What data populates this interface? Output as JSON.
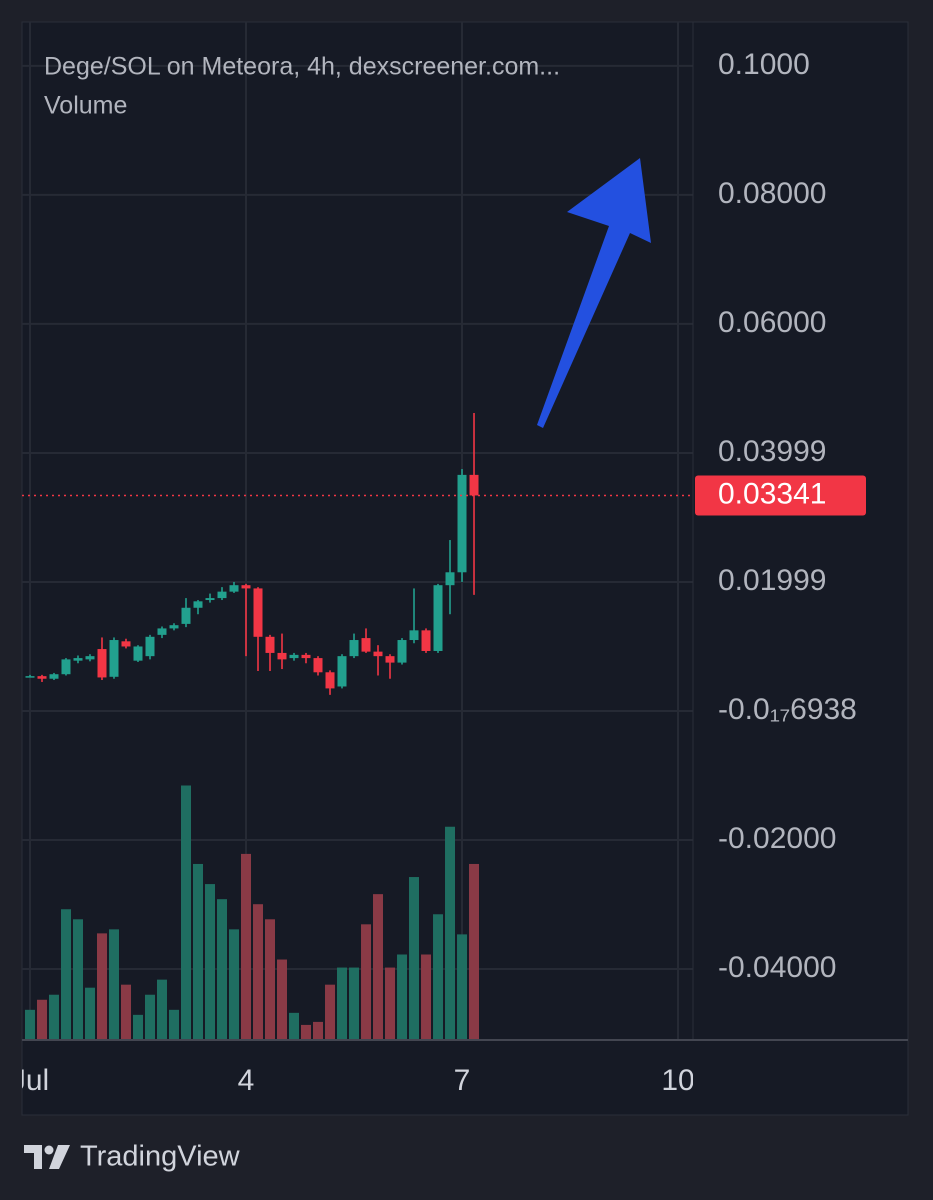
{
  "chart_data": {
    "type": "candlestick",
    "title": "Dege/SOL on Meteora, 4h, dexscreener.com...",
    "subtitle": "Volume",
    "x": [
      1,
      1.1667,
      1.3333,
      1.5,
      1.6667,
      1.8333,
      2,
      2.1667,
      2.3333,
      2.5,
      2.6667,
      2.8333,
      3,
      3.1667,
      3.3333,
      3.5,
      3.6667,
      3.8333,
      4,
      4.1667,
      4.3333,
      4.5,
      4.6667,
      4.8333,
      5,
      5.1667,
      5.3333,
      5.5,
      5.6667,
      5.8333,
      6,
      6.1667,
      6.3333,
      6.5,
      6.6667,
      6.8333,
      7,
      7.1667
    ],
    "open": [
      0.0054,
      0.0054,
      0.005,
      0.0057,
      0.0078,
      0.008,
      0.0096,
      0.0053,
      0.0108,
      0.0078,
      0.0085,
      0.0118,
      0.0128,
      0.0135,
      0.016,
      0.0172,
      0.0175,
      0.0185,
      0.0195,
      0.019,
      0.0115,
      0.009,
      0.0082,
      0.0087,
      0.0082,
      0.006,
      0.0038,
      0.0085,
      0.0113,
      0.0092,
      0.0085,
      0.0075,
      0.011,
      0.0125,
      0.0093,
      0.0195,
      0.0215,
      0.0366
    ],
    "high": [
      0.0056,
      0.0056,
      0.0059,
      0.0082,
      0.0086,
      0.0088,
      0.0114,
      0.0114,
      0.0112,
      0.0102,
      0.0118,
      0.0131,
      0.0136,
      0.0175,
      0.0172,
      0.0182,
      0.0192,
      0.02,
      0.0197,
      0.0192,
      0.0118,
      0.012,
      0.009,
      0.009,
      0.0085,
      0.0063,
      0.0088,
      0.012,
      0.0128,
      0.0102,
      0.0088,
      0.0113,
      0.019,
      0.0128,
      0.0197,
      0.0265,
      0.0375,
      0.0462
    ],
    "low": [
      0.0052,
      0.0045,
      0.0048,
      0.0055,
      0.0074,
      0.0077,
      0.0048,
      0.005,
      0.0097,
      0.0076,
      0.008,
      0.0113,
      0.0125,
      0.013,
      0.015,
      0.0168,
      0.0172,
      0.0183,
      0.0085,
      0.0062,
      0.0062,
      0.0065,
      0.0078,
      0.0074,
      0.0055,
      0.0025,
      0.0035,
      0.0082,
      0.009,
      0.0055,
      0.005,
      0.0072,
      0.0105,
      0.009,
      0.009,
      0.015,
      0.02,
      0.018
    ],
    "close": [
      0.0054,
      0.005,
      0.0057,
      0.008,
      0.0082,
      0.0085,
      0.0052,
      0.011,
      0.01,
      0.01,
      0.0115,
      0.0128,
      0.0133,
      0.016,
      0.017,
      0.0175,
      0.0185,
      0.0195,
      0.019,
      0.0115,
      0.009,
      0.008,
      0.0087,
      0.0082,
      0.006,
      0.0035,
      0.0085,
      0.011,
      0.0092,
      0.0085,
      0.0075,
      0.011,
      0.0125,
      0.0093,
      0.0195,
      0.0215,
      0.0366,
      0.03341
    ],
    "volume": [
      30,
      40,
      45,
      130,
      120,
      52,
      106,
      110,
      55,
      25,
      45,
      60,
      30,
      253,
      175,
      155,
      140,
      110,
      185,
      135,
      120,
      80,
      27,
      15,
      18,
      55,
      72,
      72,
      115,
      145,
      72,
      85,
      162,
      85,
      125,
      212,
      105,
      175
    ],
    "up_color": "#22a08e",
    "down_color": "#f23645",
    "volume_up_color": "#1f6e61",
    "volume_down_color": "#8a3a46",
    "last_price": 0.03341,
    "xlim": [
      0.889,
      10.208
    ],
    "xticks": [
      {
        "value": 1,
        "label": "Jul"
      },
      4,
      7,
      10
    ],
    "ylim": [
      -0.051,
      0.1068
    ],
    "yticks": [
      {
        "value": 0.1,
        "label": "0.1000"
      },
      {
        "value": 0.08,
        "label": "0.08000"
      },
      {
        "value": 0.06,
        "label": "0.06000"
      },
      0.03999,
      0.01999,
      {
        "value": -6.938e-19,
        "label": "-0.0₁₇6938"
      },
      {
        "value": -0.02,
        "label": "-0.02000"
      },
      {
        "value": -0.04,
        "label": "-0.04000"
      }
    ],
    "grid": true,
    "footer": "TradingView"
  }
}
